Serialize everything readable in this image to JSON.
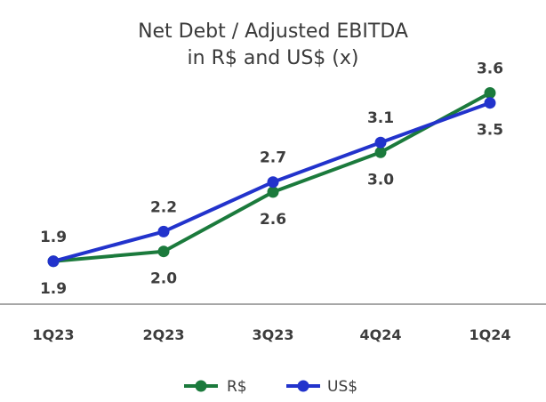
{
  "chart_data": {
    "type": "line",
    "title": "Net Debt / Adjusted EBITDA",
    "subtitle": "in R$ and US$ (x)",
    "categories": [
      "1Q23",
      "2Q23",
      "3Q23",
      "4Q24",
      "1Q24"
    ],
    "series": [
      {
        "name": "R$",
        "color": "#1b7a3c",
        "values": [
          1.9,
          2.0,
          2.6,
          3.0,
          3.6
        ],
        "label_position": [
          "below",
          "below",
          "below",
          "below",
          "above"
        ]
      },
      {
        "name": "US$",
        "color": "#2233cc",
        "values": [
          1.9,
          2.2,
          2.7,
          3.1,
          3.5
        ],
        "label_position": [
          "above",
          "above",
          "above",
          "above",
          "below"
        ]
      }
    ],
    "ylim": [
      1.0,
      4.0
    ],
    "grid": false,
    "legend": "bottom-center"
  }
}
